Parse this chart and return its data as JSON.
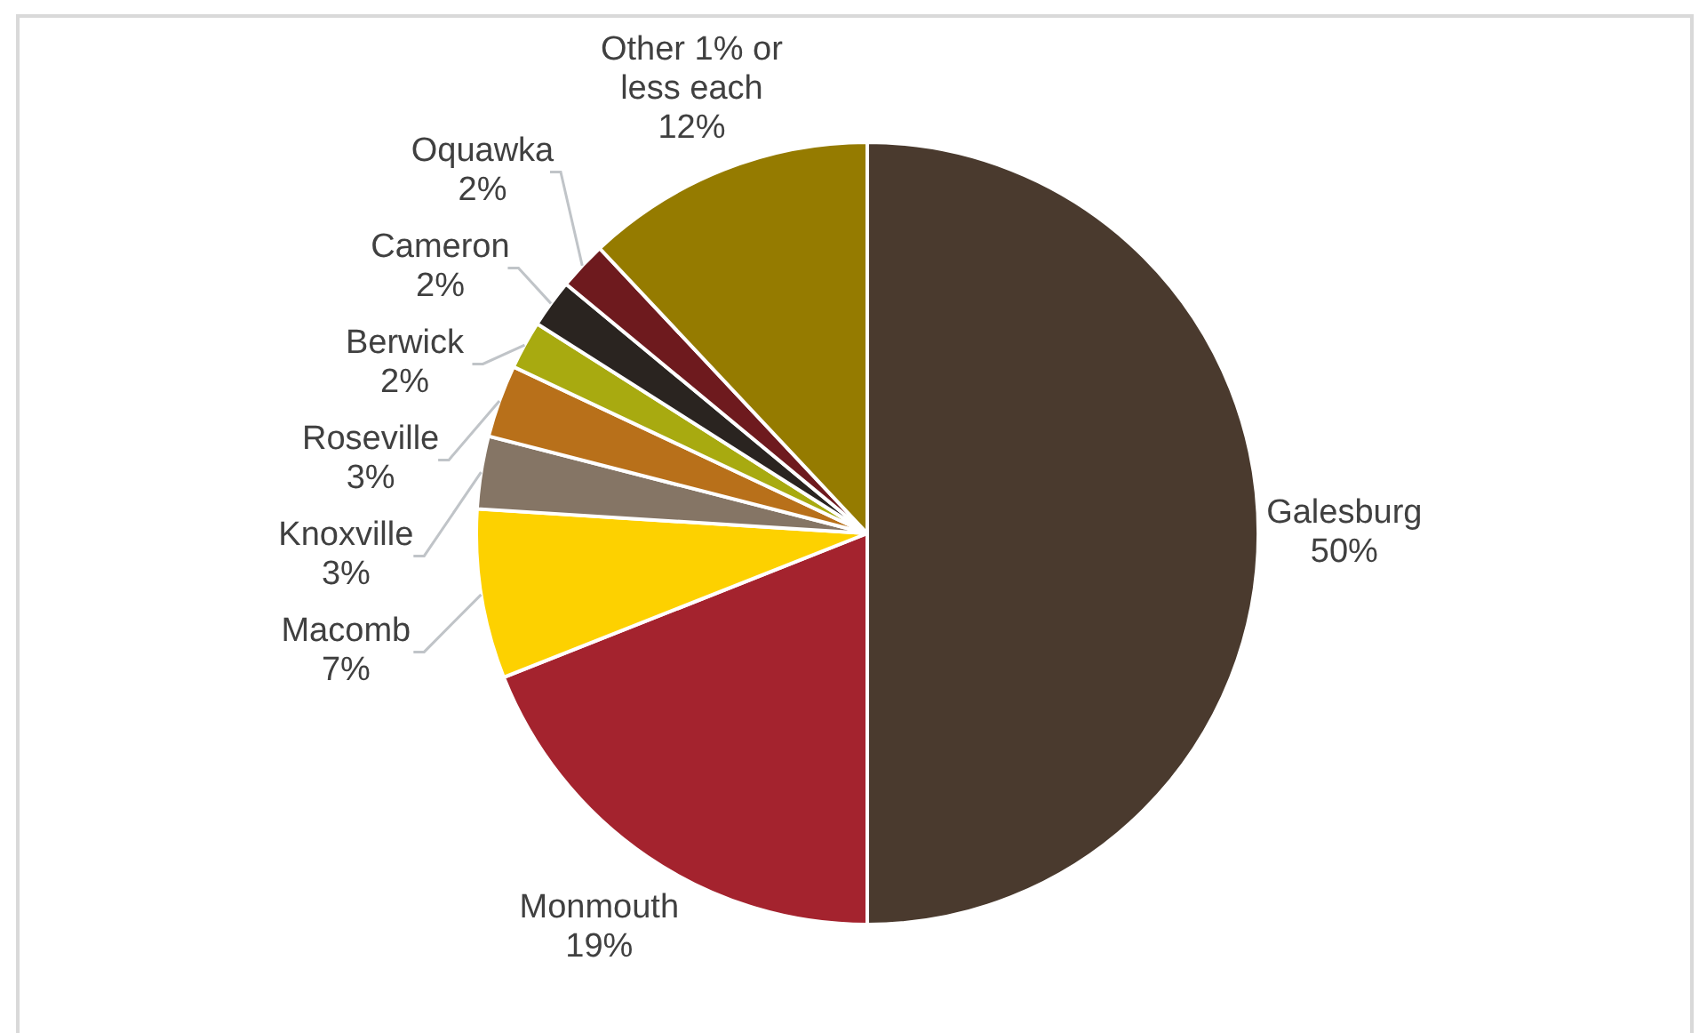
{
  "chart_data": {
    "type": "pie",
    "categories": [
      "Galesburg",
      "Monmouth",
      "Macomb",
      "Knoxville",
      "Roseville",
      "Berwick",
      "Cameron",
      "Oquawka",
      "Other 1% or less each"
    ],
    "values": [
      50,
      19,
      7,
      3,
      3,
      2,
      2,
      2,
      12
    ],
    "value_labels": [
      "50%",
      "19%",
      "7%",
      "3%",
      "3%",
      "2%",
      "2%",
      "2%",
      "12%"
    ],
    "colors": [
      "#4a3a2e",
      "#a4232e",
      "#fdd100",
      "#857565",
      "#b8701a",
      "#a8aa10",
      "#2a2420",
      "#6e1a1e",
      "#957b00"
    ]
  }
}
